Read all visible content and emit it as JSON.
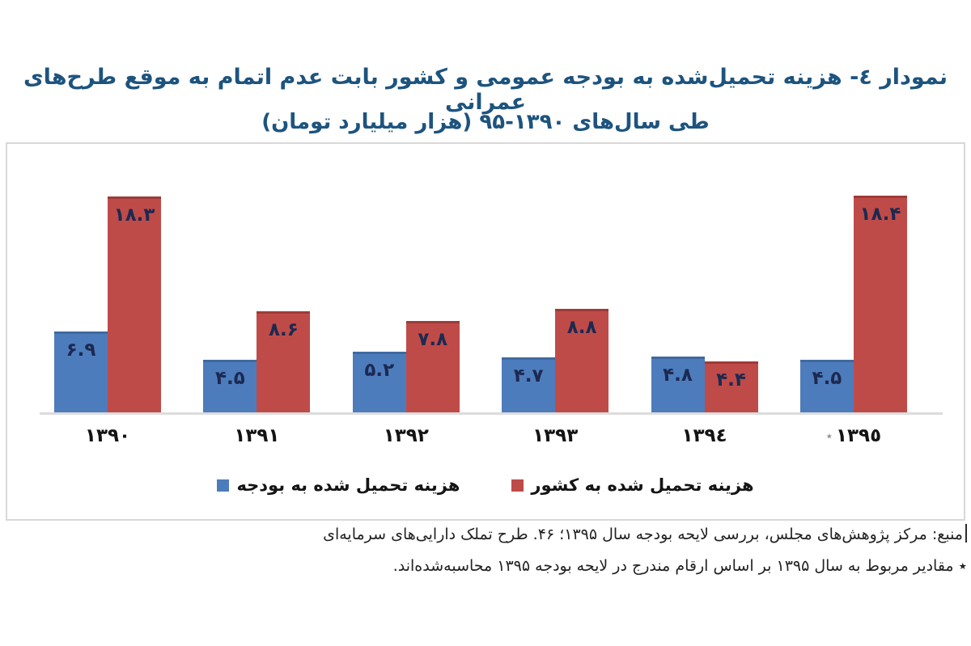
{
  "title": {
    "line1": "نمودار ٤- هزینه تحمیل‌شده به بودجه عمومی و کشور بابت عدم اتمام به موقع طرح‌های عمرانی",
    "line2_pre": "طی سال‌های",
    "line2_range": "۹۵-۱۳۹۰",
    "line2_post": "(هزار میلیارد تومان)",
    "title_color": "#1d547e"
  },
  "chart_data": {
    "type": "bar",
    "title": "هزینه تحمیل‌شده به بودجه عمومی و کشور بابت عدم اتمام به موقع طرح‌های عمرانی طی سال‌های ۱۳۹۰-۹۵ (هزار میلیارد تومان)",
    "categories": [
      "۱۳۹۰",
      "۱۳۹۱",
      "۱۳۹۲",
      "۱۳۹۳",
      "۱۳۹٤",
      "۱۳۹٥"
    ],
    "categories_western": [
      1390,
      1391,
      1392,
      1393,
      1394,
      1395
    ],
    "starred_category_index": 5,
    "star_marker": "٭",
    "series": [
      {
        "name": "هزینه تحمیل شده به بودجه",
        "color": "#4d7cbc",
        "values": [
          6.9,
          4.5,
          5.2,
          4.7,
          4.8,
          4.5
        ],
        "value_labels": [
          "۶.۹",
          "۴.۵",
          "۵.۲",
          "۴.۷",
          "۴.۸",
          "۴.۵"
        ]
      },
      {
        "name": "هزینه تحمیل شده به کشور",
        "color": "#bf4b48",
        "values": [
          18.3,
          8.6,
          7.8,
          8.8,
          4.4,
          18.4
        ],
        "value_labels": [
          "۱۸.۳",
          "۸.۶",
          "۷.۸",
          "۸.۸",
          "۴.۴",
          "۱۸.۴"
        ]
      }
    ],
    "ylim": [
      0,
      19
    ],
    "grid": false,
    "legend_position": "bottom-inside",
    "xlabel": "",
    "ylabel": ""
  },
  "footer": {
    "line1": "منبع: مرکز پژوهش‌های مجلس، بررسی لایحه بودجه سال ۱۳۹۵؛ ۴۶. طرح تملک دارایی‌های سرمایه‌ای",
    "line2": "٭ مقادیر مربوط به سال ۱۳۹۵ بر اساس ارقام مندرج در لایحه بودجه ۱۳۹۵ محاسبه‌شده‌اند."
  },
  "colors": {
    "axis_line": "#dcdcdc",
    "box_border": "#d8d8d8",
    "bar_label": "#1c2951",
    "blue_bar_top_edge": "#40699f",
    "red_bar_top_edge": "#9e3b38",
    "year_label": "#141414",
    "star": "#8f8f8f"
  }
}
